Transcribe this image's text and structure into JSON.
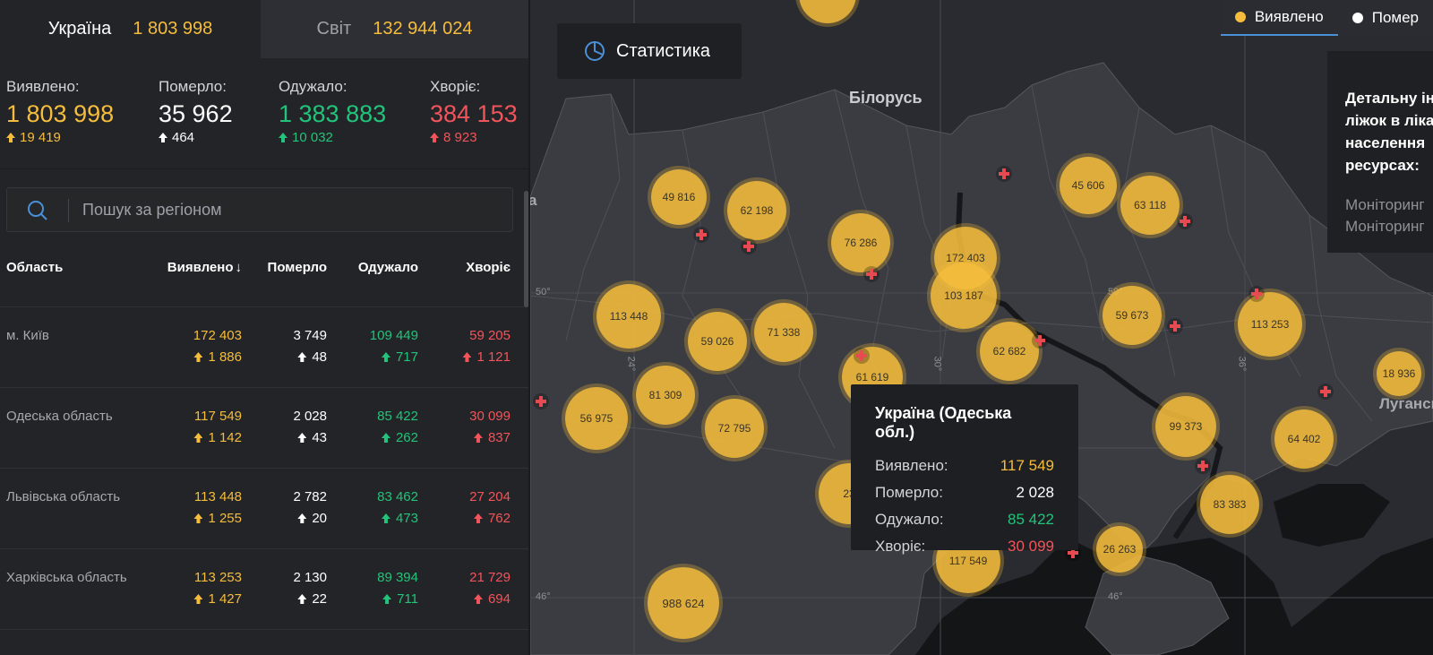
{
  "tabs": {
    "ukraine_label": "Україна",
    "ukraine_value": "1 803 998",
    "world_label": "Світ",
    "world_value": "132 944 024"
  },
  "totals": {
    "detected": {
      "label": "Виявлено:",
      "value": "1 803 998",
      "delta": "19 419"
    },
    "died": {
      "label": "Померло:",
      "value": "35 962",
      "delta": "464"
    },
    "recovered": {
      "label": "Одужало:",
      "value": "1 383 883",
      "delta": "10 032"
    },
    "sick": {
      "label": "Хворіє:",
      "value": "384 153",
      "delta": "8 923"
    }
  },
  "search": {
    "placeholder": "Пошук за регіоном"
  },
  "table": {
    "headers": {
      "region": "Область",
      "detected": "Виявлено",
      "detected_sort": "↓",
      "died": "Померло",
      "recovered": "Одужало",
      "sick": "Хворіє"
    },
    "rows": [
      {
        "name": "м. Київ",
        "detected": "172 403",
        "detected_d": "1 886",
        "died": "3 749",
        "died_d": "48",
        "recovered": "109 449",
        "recovered_d": "717",
        "sick": "59 205",
        "sick_d": "1 121"
      },
      {
        "name": "Одеська область",
        "detected": "117 549",
        "detected_d": "1 142",
        "died": "2 028",
        "died_d": "43",
        "recovered": "85 422",
        "recovered_d": "262",
        "sick": "30 099",
        "sick_d": "837"
      },
      {
        "name": "Львівська область",
        "detected": "113 448",
        "detected_d": "1 255",
        "died": "2 782",
        "died_d": "20",
        "recovered": "83 462",
        "recovered_d": "473",
        "sick": "27 204",
        "sick_d": "762"
      },
      {
        "name": "Харківська область",
        "detected": "113 253",
        "detected_d": "1 427",
        "died": "2 130",
        "died_d": "22",
        "recovered": "89 394",
        "recovered_d": "711",
        "sick": "21 729",
        "sick_d": "694"
      }
    ]
  },
  "map": {
    "stat_button": "Статистика",
    "country_label": "Білорусь",
    "city_label": "Лугансь",
    "edge_letter": "a",
    "grid_labels": [
      "50°",
      "50°",
      "46°",
      "46°",
      "24°",
      "30°",
      "36°"
    ],
    "legend": {
      "detected": "Виявлено",
      "died": "Помер"
    },
    "info_panel": {
      "lines": [
        "Детальну ін",
        "ліжок в ліка",
        "населення",
        "ресурсах:"
      ],
      "links": [
        "Моніторинг",
        "Моніторинг"
      ]
    },
    "bubbles": [
      "49 816",
      "62 198",
      "76 286",
      "172 403",
      "103 187",
      "45 606",
      "63 118",
      "113 448",
      "59 026",
      "71 338",
      "62 682",
      "59 673",
      "113 253",
      "18 936",
      "81 309",
      "61 619",
      "56 975",
      "72 795",
      "99 373",
      "64 402",
      "23",
      "83 383",
      "26 263",
      "117 549",
      "988 624"
    ],
    "tooltip": {
      "title": "Україна (Одеська обл.)",
      "rows": [
        {
          "label": "Виявлено:",
          "value": "117 549"
        },
        {
          "label": "Померло:",
          "value": "2 028"
        },
        {
          "label": "Одужало:",
          "value": "85 422"
        },
        {
          "label": "Хворіє:",
          "value": "30 099"
        }
      ]
    }
  },
  "colors": {
    "detected": "#f5bd3b",
    "died": "#ffffff",
    "recovered": "#21c47a",
    "sick": "#f2545b",
    "accent": "#4a90d9"
  }
}
